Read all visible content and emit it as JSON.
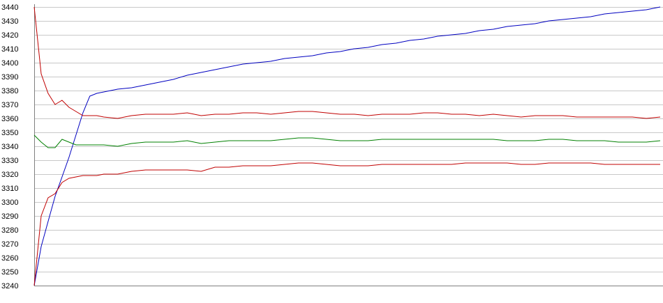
{
  "chart_data": {
    "type": "line",
    "title": "",
    "xlabel": "",
    "ylabel": "",
    "ylim": [
      3240,
      3440
    ],
    "yticks": [
      3240,
      3250,
      3260,
      3270,
      3280,
      3290,
      3300,
      3310,
      3320,
      3330,
      3340,
      3350,
      3360,
      3370,
      3380,
      3390,
      3400,
      3410,
      3420,
      3430,
      3440
    ],
    "grid": true,
    "legend": "none",
    "x": [
      0,
      2,
      4,
      6,
      8,
      10,
      12,
      14,
      16,
      18,
      20,
      24,
      28,
      32,
      36,
      40,
      44,
      48,
      52,
      56,
      60,
      64,
      68,
      72,
      76,
      80,
      84,
      88,
      92,
      96,
      100,
      104,
      108,
      112,
      116,
      120,
      124,
      128,
      132,
      136,
      140,
      144,
      148,
      152,
      156,
      160,
      164,
      168,
      172,
      176,
      180
    ],
    "series": [
      {
        "color": "#0000c0",
        "values": [
          3240,
          3268,
          3286,
          3304,
          3318,
          3332,
          3348,
          3364,
          3376,
          3378,
          3379,
          3381,
          3382,
          3384,
          3386,
          3388,
          3391,
          3393,
          3395,
          3397,
          3399,
          3400,
          3401,
          3403,
          3404,
          3405,
          3407,
          3408,
          3410,
          3411,
          3413,
          3414,
          3416,
          3417,
          3419,
          3420,
          3421,
          3423,
          3424,
          3426,
          3427,
          3428,
          3430,
          3431,
          3432,
          3433,
          3435,
          3436,
          3437,
          3438,
          3440
        ]
      },
      {
        "color": "#c00000",
        "values": [
          3440,
          3392,
          3378,
          3370,
          3373,
          3368,
          3365,
          3362,
          3362,
          3362,
          3361,
          3360,
          3362,
          3363,
          3363,
          3363,
          3364,
          3362,
          3363,
          3363,
          3364,
          3364,
          3363,
          3364,
          3365,
          3365,
          3364,
          3363,
          3363,
          3362,
          3363,
          3363,
          3363,
          3364,
          3364,
          3363,
          3363,
          3362,
          3363,
          3362,
          3361,
          3362,
          3362,
          3362,
          3361,
          3361,
          3361,
          3361,
          3361,
          3360,
          3361
        ]
      },
      {
        "color": "#008000",
        "values": [
          3348,
          3343,
          3339,
          3339,
          3345,
          3343,
          3341,
          3341,
          3341,
          3341,
          3341,
          3340,
          3342,
          3343,
          3343,
          3343,
          3344,
          3342,
          3343,
          3344,
          3344,
          3344,
          3344,
          3345,
          3346,
          3346,
          3345,
          3344,
          3344,
          3344,
          3345,
          3345,
          3345,
          3345,
          3345,
          3345,
          3345,
          3345,
          3345,
          3344,
          3344,
          3344,
          3345,
          3345,
          3344,
          3344,
          3344,
          3343,
          3343,
          3343,
          3344
        ]
      },
      {
        "color": "#c00000",
        "values": [
          3240,
          3290,
          3303,
          3306,
          3314,
          3317,
          3318,
          3319,
          3319,
          3319,
          3320,
          3320,
          3322,
          3323,
          3323,
          3323,
          3323,
          3322,
          3325,
          3325,
          3326,
          3326,
          3326,
          3327,
          3328,
          3328,
          3327,
          3326,
          3326,
          3326,
          3327,
          3327,
          3327,
          3327,
          3327,
          3327,
          3328,
          3328,
          3328,
          3328,
          3327,
          3327,
          3328,
          3328,
          3328,
          3328,
          3327,
          3327,
          3327,
          3327,
          3327
        ]
      }
    ]
  }
}
